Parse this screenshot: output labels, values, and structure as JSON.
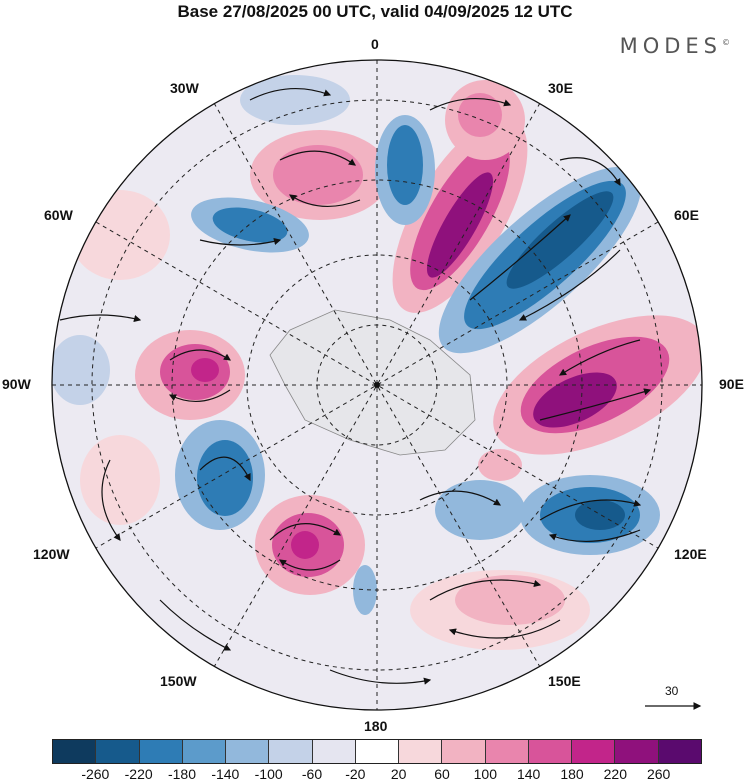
{
  "header": {
    "title": "Base 27/08/2025 00 UTC, valid 04/09/2025 12 UTC",
    "brand": "MODES",
    "brand_mark": "©"
  },
  "map": {
    "projection": "south-polar-stereographic",
    "meridian_labels": [
      "0",
      "30E",
      "60E",
      "90E",
      "120E",
      "150E",
      "180",
      "150W",
      "120W",
      "90W",
      "60W",
      "30W"
    ],
    "wind_vector_reference": "30"
  },
  "colorbar": {
    "colors": [
      "#0e3a5e",
      "#165a8c",
      "#2e7cb5",
      "#5c9bcb",
      "#92b8dc",
      "#c4d2e8",
      "#e5e5f0",
      "#ffffff",
      "#f7d8dc",
      "#f2b3c2",
      "#e985ad",
      "#d8549a",
      "#c2258a",
      "#8f117c",
      "#5a0a6e"
    ],
    "ticks": [
      "-260",
      "-220",
      "-180",
      "-140",
      "-100",
      "-60",
      "-20",
      "20",
      "60",
      "100",
      "140",
      "180",
      "220",
      "260"
    ]
  }
}
